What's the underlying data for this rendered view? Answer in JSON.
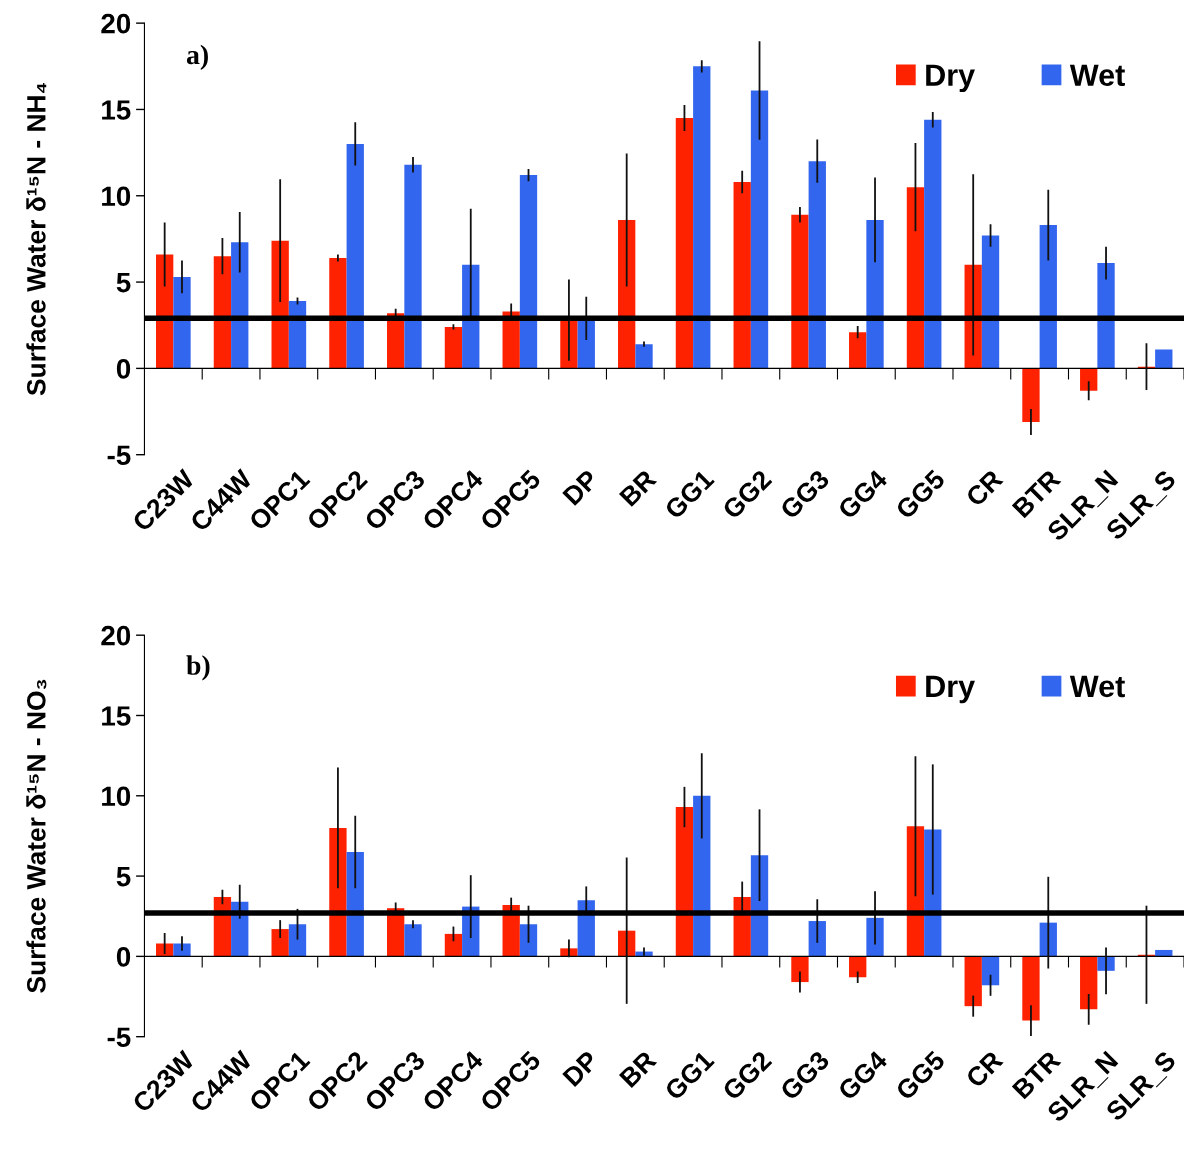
{
  "chart_data": [
    {
      "type": "bar",
      "ylabel": "Surface Water δ¹⁵N - NH₄",
      "annotations": [
        "a)"
      ],
      "categories": [
        "C23W",
        "C44W",
        "OPC1",
        "OPC2",
        "OPC3",
        "OPC4",
        "OPC5",
        "DP",
        "BR",
        "GG1",
        "GG2",
        "GG3",
        "GG4",
        "GG5",
        "CR",
        "BTR",
        "SLR_N",
        "SLR_S"
      ],
      "series": [
        {
          "name": "Dry",
          "color": "#ff2200",
          "values": [
            6.6,
            6.5,
            7.4,
            6.4,
            3.2,
            2.4,
            3.3,
            2.8,
            8.6,
            14.5,
            10.8,
            8.9,
            2.1,
            10.5,
            6.0,
            -3.1,
            -1.3,
            0.1
          ],
          "errors": [
            1.8,
            1.0,
            3.5,
            0.15,
            0.2,
            0.1,
            0.4,
            2.3,
            3.8,
            0.7,
            0.6,
            0.4,
            0.3,
            2.5,
            5.2,
            0.7,
            0.5,
            1.3
          ]
        },
        {
          "name": "Wet",
          "color": "#3366ee",
          "values": [
            5.3,
            7.3,
            3.9,
            13.0,
            11.8,
            6.0,
            11.2,
            2.9,
            1.4,
            17.5,
            16.1,
            12.0,
            8.6,
            14.4,
            7.7,
            8.3,
            6.1,
            1.1
          ],
          "errors": [
            0.9,
            1.7,
            0.15,
            1.2,
            0.4,
            3.2,
            0.3,
            1.2,
            0.1,
            0.3,
            2.8,
            1.2,
            2.4,
            0.4,
            0.6,
            2.0,
            0.9,
            null
          ]
        }
      ],
      "ylim": [
        -5,
        20
      ],
      "yticks": [
        -5,
        0,
        5,
        10,
        15,
        20
      ],
      "ref_lines": [
        {
          "axis": "y",
          "value": 2.9,
          "color": "#000000"
        }
      ],
      "legend": "top right"
    },
    {
      "type": "bar",
      "ylabel": "Surface Water δ¹⁵N - NO₃",
      "annotations": [
        "b)"
      ],
      "categories": [
        "C23W",
        "C44W",
        "OPC1",
        "OPC2",
        "OPC3",
        "OPC4",
        "OPC5",
        "DP",
        "BR",
        "GG1",
        "GG2",
        "GG3",
        "GG4",
        "GG5",
        "CR",
        "BTR",
        "SLR_N",
        "SLR_S"
      ],
      "series": [
        {
          "name": "Dry",
          "color": "#ff2200",
          "values": [
            0.8,
            3.7,
            1.7,
            8.0,
            3.0,
            1.4,
            3.2,
            0.5,
            1.6,
            9.3,
            3.7,
            -1.6,
            -1.3,
            8.1,
            -3.1,
            -4.0,
            -3.3,
            0.1
          ],
          "errors": [
            0.6,
            0.4,
            0.5,
            3.7,
            0.3,
            0.4,
            0.4,
            0.5,
            4.5,
            1.2,
            0.9,
            0.6,
            0.3,
            4.3,
            0.6,
            0.9,
            0.9,
            3.0
          ]
        },
        {
          "name": "Wet",
          "color": "#3366ee",
          "values": [
            0.8,
            3.4,
            2.0,
            6.5,
            2.0,
            3.1,
            2.0,
            3.5,
            0.3,
            10.0,
            6.3,
            2.2,
            2.4,
            7.9,
            -1.8,
            2.1,
            -0.9,
            0.4
          ],
          "errors": [
            0.4,
            1.0,
            0.9,
            2.2,
            0.2,
            1.9,
            1.1,
            0.8,
            0.2,
            2.6,
            2.8,
            1.3,
            1.6,
            4.0,
            0.6,
            2.8,
            1.4,
            null
          ]
        }
      ],
      "ylim": [
        -5,
        20
      ],
      "yticks": [
        -5,
        0,
        5,
        10,
        15,
        20
      ],
      "ref_lines": [
        {
          "axis": "y",
          "value": 2.7,
          "color": "#000000"
        }
      ],
      "legend": "top right"
    }
  ]
}
